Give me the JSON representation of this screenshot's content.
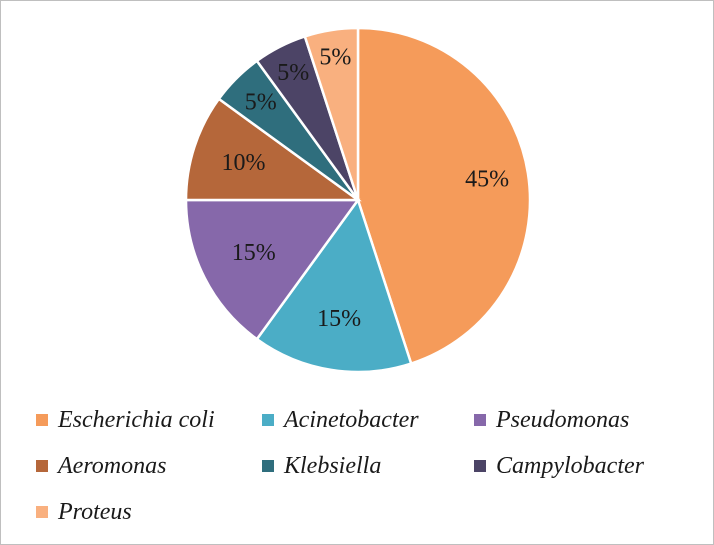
{
  "chart_data": {
    "type": "pie",
    "title": "",
    "slices": [
      {
        "label": "Escherichia coli",
        "value": 45,
        "display": "45%",
        "color": "#F59B5A"
      },
      {
        "label": "Acinetobacter",
        "value": 15,
        "display": "15%",
        "color": "#4BADC6"
      },
      {
        "label": "Pseudomonas",
        "value": 15,
        "display": "15%",
        "color": "#8668AA"
      },
      {
        "label": "Aeromonas",
        "value": 10,
        "display": "10%",
        "color": "#B5673A"
      },
      {
        "label": "Klebsiella",
        "value": 5,
        "display": "5%",
        "color": "#2F6E7D"
      },
      {
        "label": "Campylobacter",
        "value": 5,
        "display": "5%",
        "color": "#4C4466"
      },
      {
        "label": "Proteus",
        "value": 5,
        "display": "5%",
        "color": "#F9B07F"
      }
    ],
    "legend_position": "bottom"
  }
}
